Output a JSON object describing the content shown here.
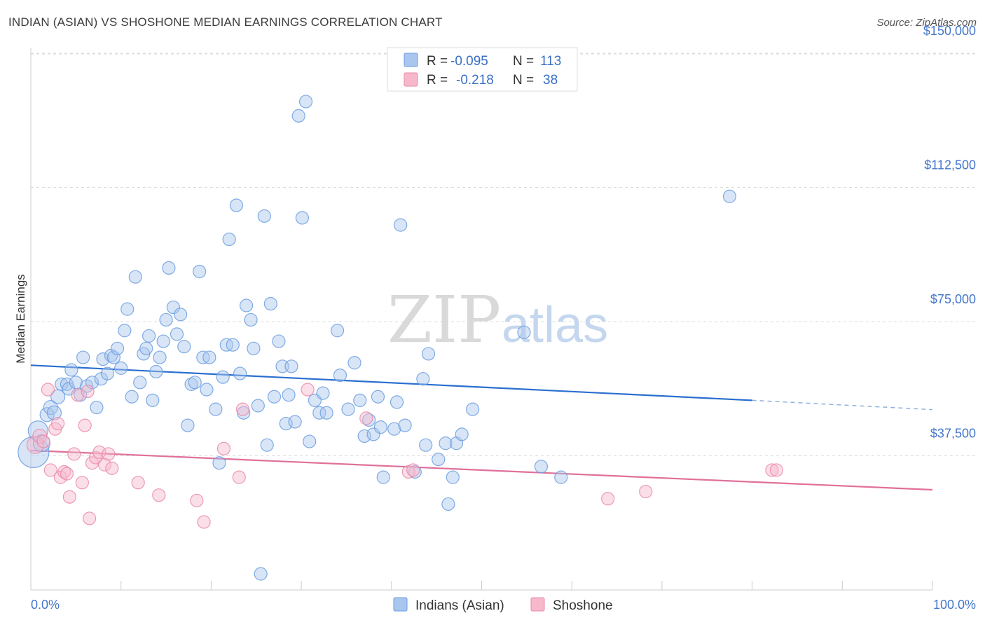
{
  "header": {
    "title": "INDIAN (ASIAN) VS SHOSHONE MEDIAN EARNINGS CORRELATION CHART",
    "source": "Source: ZipAtlas.com"
  },
  "legend": {
    "rows": [
      {
        "r_label": "R =",
        "r_value": "-0.095",
        "n_label": "N =",
        "n_value": "113",
        "color": "#a9c6ee"
      },
      {
        "r_label": "R =",
        "r_value": "-0.218",
        "n_label": "N =",
        "n_value": "38",
        "color": "#f7b8cc"
      }
    ]
  },
  "watermark": {
    "zip": "ZIP",
    "atlas": "atlas"
  },
  "chart_data": {
    "type": "scatter",
    "title": "INDIAN (ASIAN) VS SHOSHONE MEDIAN EARNINGS CORRELATION CHART",
    "xlabel": "",
    "ylabel": "Median Earnings",
    "xlim": [
      0,
      100
    ],
    "ylim": [
      0,
      155000
    ],
    "x_tick_labels": [
      "0.0%",
      "100.0%"
    ],
    "y_ticks": [
      37500,
      75000,
      112500,
      150000
    ],
    "y_tick_labels": [
      "$37,500",
      "$75,000",
      "$112,500",
      "$150,000"
    ],
    "grid": "horizontal dashed",
    "legend_position": "top-center",
    "series": [
      {
        "name": "Indians (Asian)",
        "color": "#6a9ee0",
        "fill": "#a9c6ee",
        "trend": {
          "x0": 0,
          "y0": 62800,
          "x1": 80,
          "y1": 53000,
          "dash_to_x": 100,
          "dash_to_y": 50400
        },
        "points": [
          [
            0.3,
            38500,
            22
          ],
          [
            0.8,
            44500,
            14
          ],
          [
            1.2,
            41000,
            12
          ],
          [
            1.8,
            49000,
            10
          ],
          [
            2.2,
            51000,
            10
          ],
          [
            2.6,
            49500,
            10
          ],
          [
            3.0,
            54000,
            10
          ],
          [
            3.4,
            57500,
            9
          ],
          [
            4.0,
            57500,
            9
          ],
          [
            4.2,
            56200,
            9
          ],
          [
            4.5,
            61500,
            9
          ],
          [
            5.0,
            58000,
            9
          ],
          [
            5.5,
            54500,
            9
          ],
          [
            5.8,
            65000,
            9
          ],
          [
            6.2,
            57000,
            9
          ],
          [
            6.8,
            58000,
            9
          ],
          [
            7.3,
            51000,
            9
          ],
          [
            7.8,
            59000,
            9
          ],
          [
            8.0,
            64500,
            9
          ],
          [
            8.5,
            60500,
            9
          ],
          [
            8.9,
            65500,
            9
          ],
          [
            9.2,
            65000,
            9
          ],
          [
            9.6,
            67500,
            9
          ],
          [
            10.0,
            62000,
            9
          ],
          [
            10.4,
            72500,
            9
          ],
          [
            10.7,
            78500,
            9
          ],
          [
            11.2,
            54000,
            9
          ],
          [
            11.6,
            87500,
            9
          ],
          [
            12.1,
            58000,
            9
          ],
          [
            12.5,
            66000,
            9
          ],
          [
            12.8,
            67500,
            9
          ],
          [
            13.1,
            71000,
            9
          ],
          [
            13.5,
            53000,
            9
          ],
          [
            13.9,
            61000,
            9
          ],
          [
            14.3,
            65000,
            9
          ],
          [
            14.7,
            69500,
            9
          ],
          [
            15.0,
            75500,
            9
          ],
          [
            15.3,
            90000,
            9
          ],
          [
            15.8,
            79000,
            9
          ],
          [
            16.2,
            71500,
            9
          ],
          [
            16.6,
            77000,
            9
          ],
          [
            17.0,
            68000,
            9
          ],
          [
            17.4,
            46000,
            9
          ],
          [
            17.8,
            57500,
            9
          ],
          [
            18.2,
            58000,
            9
          ],
          [
            18.7,
            89000,
            9
          ],
          [
            19.1,
            65000,
            9
          ],
          [
            19.5,
            56000,
            9
          ],
          [
            19.8,
            65000,
            9
          ],
          [
            20.5,
            50500,
            9
          ],
          [
            20.9,
            35500,
            9
          ],
          [
            21.3,
            59500,
            9
          ],
          [
            21.7,
            68500,
            9
          ],
          [
            22.0,
            98000,
            9
          ],
          [
            22.4,
            68500,
            9
          ],
          [
            22.8,
            107500,
            9
          ],
          [
            23.2,
            60500,
            9
          ],
          [
            23.6,
            49500,
            9
          ],
          [
            23.9,
            79500,
            9
          ],
          [
            24.4,
            75500,
            9
          ],
          [
            24.7,
            67500,
            9
          ],
          [
            25.2,
            51500,
            9
          ],
          [
            25.5,
            4500,
            9
          ],
          [
            25.9,
            104500,
            9
          ],
          [
            26.2,
            40500,
            9
          ],
          [
            26.6,
            80000,
            9
          ],
          [
            27.0,
            54000,
            9
          ],
          [
            27.5,
            69500,
            9
          ],
          [
            27.9,
            62500,
            9
          ],
          [
            28.3,
            46500,
            9
          ],
          [
            28.6,
            54500,
            9
          ],
          [
            28.9,
            62500,
            9
          ],
          [
            29.3,
            47000,
            9
          ],
          [
            29.7,
            132500,
            9
          ],
          [
            30.1,
            104000,
            9
          ],
          [
            30.5,
            136500,
            9
          ],
          [
            30.9,
            41500,
            9
          ],
          [
            31.5,
            53000,
            9
          ],
          [
            32.0,
            49500,
            9
          ],
          [
            32.4,
            55000,
            9
          ],
          [
            32.8,
            49500,
            9
          ],
          [
            34.0,
            72500,
            9
          ],
          [
            34.3,
            60000,
            9
          ],
          [
            35.2,
            50500,
            9
          ],
          [
            35.9,
            63500,
            9
          ],
          [
            36.5,
            53000,
            9
          ],
          [
            37.0,
            43000,
            9
          ],
          [
            37.5,
            47500,
            9
          ],
          [
            38.0,
            43500,
            9
          ],
          [
            38.5,
            54000,
            9
          ],
          [
            38.8,
            45500,
            9
          ],
          [
            39.1,
            31500,
            9
          ],
          [
            40.3,
            45000,
            9
          ],
          [
            40.6,
            52500,
            9
          ],
          [
            41.0,
            102000,
            9
          ],
          [
            41.5,
            46000,
            9
          ],
          [
            42.6,
            33000,
            9
          ],
          [
            43.5,
            59000,
            9
          ],
          [
            43.8,
            40500,
            9
          ],
          [
            44.1,
            66000,
            9
          ],
          [
            45.2,
            36500,
            9
          ],
          [
            46.0,
            41000,
            9
          ],
          [
            46.3,
            24000,
            9
          ],
          [
            46.8,
            31500,
            9
          ],
          [
            47.2,
            41000,
            9
          ],
          [
            47.8,
            43500,
            9
          ],
          [
            49.0,
            50500,
            9
          ],
          [
            54.7,
            72000,
            9
          ],
          [
            56.6,
            34500,
            9
          ],
          [
            58.8,
            31500,
            9
          ],
          [
            77.5,
            110000,
            9
          ]
        ]
      },
      {
        "name": "Shoshone",
        "color": "#e98aa8",
        "fill": "#f7b8cc",
        "trend": {
          "x0": 0,
          "y0": 39000,
          "x1": 100,
          "y1": 28000
        },
        "points": [
          [
            0.5,
            40500,
            12
          ],
          [
            1.0,
            43000,
            10
          ],
          [
            1.4,
            41500,
            9
          ],
          [
            1.9,
            56000,
            9
          ],
          [
            2.2,
            33500,
            9
          ],
          [
            2.7,
            45000,
            9
          ],
          [
            3.0,
            46500,
            9
          ],
          [
            3.3,
            31500,
            9
          ],
          [
            3.7,
            33000,
            9
          ],
          [
            4.0,
            32500,
            9
          ],
          [
            4.3,
            26000,
            9
          ],
          [
            4.8,
            38000,
            9
          ],
          [
            5.2,
            54500,
            9
          ],
          [
            5.7,
            30000,
            9
          ],
          [
            6.0,
            46000,
            9
          ],
          [
            6.3,
            55500,
            9
          ],
          [
            6.5,
            20000,
            9
          ],
          [
            6.8,
            35500,
            9
          ],
          [
            7.2,
            37000,
            9
          ],
          [
            7.6,
            38500,
            9
          ],
          [
            8.2,
            35000,
            9
          ],
          [
            8.6,
            38000,
            9
          ],
          [
            9.0,
            34000,
            9
          ],
          [
            11.9,
            30000,
            9
          ],
          [
            14.2,
            26500,
            9
          ],
          [
            18.4,
            25000,
            9
          ],
          [
            19.2,
            19000,
            9
          ],
          [
            21.4,
            39500,
            9
          ],
          [
            23.1,
            31500,
            9
          ],
          [
            23.5,
            50500,
            9
          ],
          [
            30.7,
            56000,
            9
          ],
          [
            37.2,
            48000,
            9
          ],
          [
            41.9,
            33000,
            9
          ],
          [
            42.4,
            33500,
            9
          ],
          [
            64.0,
            25500,
            9
          ],
          [
            68.2,
            27500,
            9
          ],
          [
            82.2,
            33500,
            9
          ],
          [
            82.7,
            33500,
            9
          ]
        ]
      }
    ]
  }
}
